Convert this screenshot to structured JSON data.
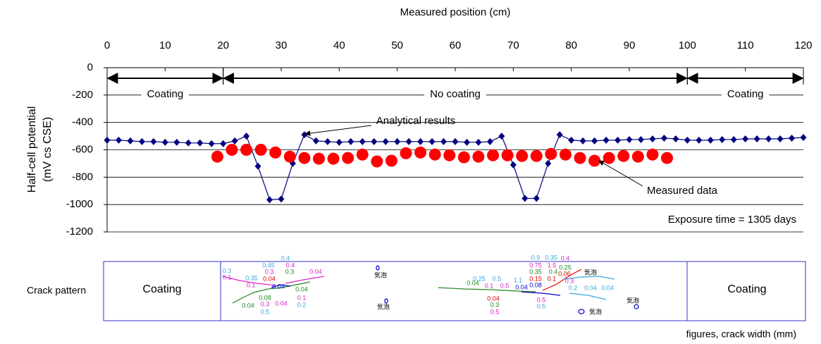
{
  "chart_data": {
    "type": "line",
    "x_label": "Measured position (cm)",
    "y_label": [
      "Half-cell potential",
      "(mV cs CSE)"
    ],
    "xlim": [
      0,
      120
    ],
    "xticks": [
      0,
      10,
      20,
      30,
      40,
      50,
      60,
      70,
      80,
      90,
      100,
      110,
      120
    ],
    "ylim": [
      -1200,
      0
    ],
    "yticks": [
      0,
      -200,
      -400,
      -600,
      -800,
      -1000,
      -1200
    ],
    "grid": true,
    "regions": [
      {
        "label": "Coating",
        "start": 0,
        "end": 20
      },
      {
        "label": "No coating",
        "start": 20,
        "end": 100
      },
      {
        "label": "Coating",
        "start": 100,
        "end": 120
      }
    ],
    "series": [
      {
        "name": "Analytical results",
        "color": "#000080",
        "marker": "diamond",
        "line": true,
        "x": [
          0,
          2,
          4,
          6,
          8,
          10,
          12,
          14,
          16,
          18,
          20,
          22,
          24,
          26,
          28,
          30,
          32,
          34,
          36,
          38,
          40,
          42,
          44,
          46,
          48,
          50,
          52,
          54,
          56,
          58,
          60,
          62,
          64,
          66,
          68,
          70,
          72,
          74,
          76,
          78,
          80,
          82,
          84,
          86,
          88,
          90,
          92,
          94,
          96,
          98,
          100,
          102,
          104,
          106,
          108,
          110,
          112,
          114,
          116,
          118,
          120
        ],
        "values": [
          -530,
          -530,
          -535,
          -540,
          -540,
          -545,
          -545,
          -550,
          -550,
          -555,
          -555,
          -535,
          -500,
          -720,
          -965,
          -960,
          -700,
          -490,
          -535,
          -540,
          -545,
          -540,
          -540,
          -540,
          -540,
          -540,
          -540,
          -540,
          -540,
          -540,
          -540,
          -545,
          -545,
          -540,
          -500,
          -710,
          -955,
          -955,
          -700,
          -490,
          -530,
          -535,
          -535,
          -530,
          -530,
          -525,
          -525,
          -520,
          -515,
          -520,
          -530,
          -530,
          -530,
          -525,
          -525,
          -520,
          -520,
          -520,
          -520,
          -515,
          -510
        ]
      },
      {
        "name": "Measured data",
        "color": "#ff0000",
        "marker": "circle",
        "line": false,
        "x": [
          19,
          21.5,
          24,
          26.5,
          29,
          31.5,
          34,
          36.5,
          39,
          41.5,
          44,
          46.5,
          49,
          51.5,
          54,
          56.5,
          59,
          61.5,
          64,
          66.5,
          69,
          71.5,
          74,
          76.5,
          79,
          81.5,
          84,
          86.5,
          89,
          91.5,
          94,
          96.5
        ],
        "values": [
          -650,
          -600,
          -600,
          -600,
          -620,
          -650,
          -660,
          -665,
          -665,
          -660,
          -635,
          -685,
          -680,
          -625,
          -620,
          -635,
          -640,
          -655,
          -650,
          -640,
          -640,
          -645,
          -645,
          -630,
          -635,
          -660,
          -680,
          -660,
          -645,
          -650,
          -635,
          -660
        ]
      }
    ],
    "annotations": [
      "Exposure time = 1305 days"
    ]
  },
  "crack_pattern": {
    "label": "Crack pattern",
    "left": "Coating",
    "right": "Coating",
    "note": "figures, crack width (mm)",
    "labels": [
      {
        "text": 0.4,
        "color": "#33aadd"
      },
      {
        "text": 0.45,
        "color": "#33aadd"
      },
      {
        "text": 0.4,
        "color": "#dd22cc"
      },
      {
        "text": 0.3,
        "color": "#33aadd"
      },
      {
        "text": 0.3,
        "color": "#dd22cc"
      },
      {
        "text": 0.3,
        "color": "#228822"
      },
      {
        "text": 0.04,
        "color": "#dd22cc"
      },
      {
        "text": 0.1,
        "color": "#dd22cc"
      },
      {
        "text": 0.35,
        "color": "#33aadd"
      },
      {
        "text": 0.04,
        "color": "#dd0000"
      },
      {
        "text": 0.1,
        "color": "#dd22cc"
      },
      {
        "text": 0.04,
        "color": "#0000cc"
      },
      {
        "text": 0.04,
        "color": "#228822"
      },
      {
        "text": 0.08,
        "color": "#228822"
      },
      {
        "text": 0.1,
        "color": "#dd22cc"
      },
      {
        "text": 0.04,
        "color": "#228822"
      },
      {
        "text": 0.3,
        "color": "#dd22cc"
      },
      {
        "text": 0.04,
        "color": "#dd22cc"
      },
      {
        "text": 0.2,
        "color": "#33aadd"
      },
      {
        "text": 0.5,
        "color": "#33aadd"
      },
      {
        "text": "気泡",
        "color": "#000000"
      },
      {
        "text": "気泡",
        "color": "#000000"
      },
      {
        "text": 0.9,
        "color": "#33aadd"
      },
      {
        "text": 0.35,
        "color": "#33aadd"
      },
      {
        "text": 0.4,
        "color": "#dd22cc"
      },
      {
        "text": 0.75,
        "color": "#dd22cc"
      },
      {
        "text": 1.5,
        "color": "#dd22cc"
      },
      {
        "text": 0.25,
        "color": "#228822"
      },
      {
        "text": 0.35,
        "color": "#228822"
      },
      {
        "text": 0.4,
        "color": "#228822"
      },
      {
        "text": 0.06,
        "color": "#dd0000"
      },
      {
        "text": "気泡",
        "color": "#000000"
      },
      {
        "text": 0.25,
        "color": "#33aadd"
      },
      {
        "text": 0.5,
        "color": "#33aadd"
      },
      {
        "text": 0.15,
        "color": "#dd0000"
      },
      {
        "text": 0.1,
        "color": "#dd0000"
      },
      {
        "text": 0.3,
        "color": "#dd22cc"
      },
      {
        "text": 0.04,
        "color": "#228822"
      },
      {
        "text": 1.1,
        "color": "#33aadd"
      },
      {
        "text": 0.1,
        "color": "#dd22cc"
      },
      {
        "text": 0.5,
        "color": "#dd22cc"
      },
      {
        "text": 0.04,
        "color": "#0000cc"
      },
      {
        "text": 0.08,
        "color": "#0000cc"
      },
      {
        "text": 0.2,
        "color": "#33aadd"
      },
      {
        "text": 0.04,
        "color": "#33aadd"
      },
      {
        "text": 0.04,
        "color": "#33aadd"
      },
      {
        "text": 0.04,
        "color": "#dd0000"
      },
      {
        "text": 0.5,
        "color": "#dd22cc"
      },
      {
        "text": "気泡",
        "color": "#000000"
      },
      {
        "text": 0.3,
        "color": "#228822"
      },
      {
        "text": 0.5,
        "color": "#33aadd"
      },
      {
        "text": "気泡",
        "color": "#000000"
      },
      {
        "text": 0.5,
        "color": "#dd22cc"
      }
    ]
  }
}
